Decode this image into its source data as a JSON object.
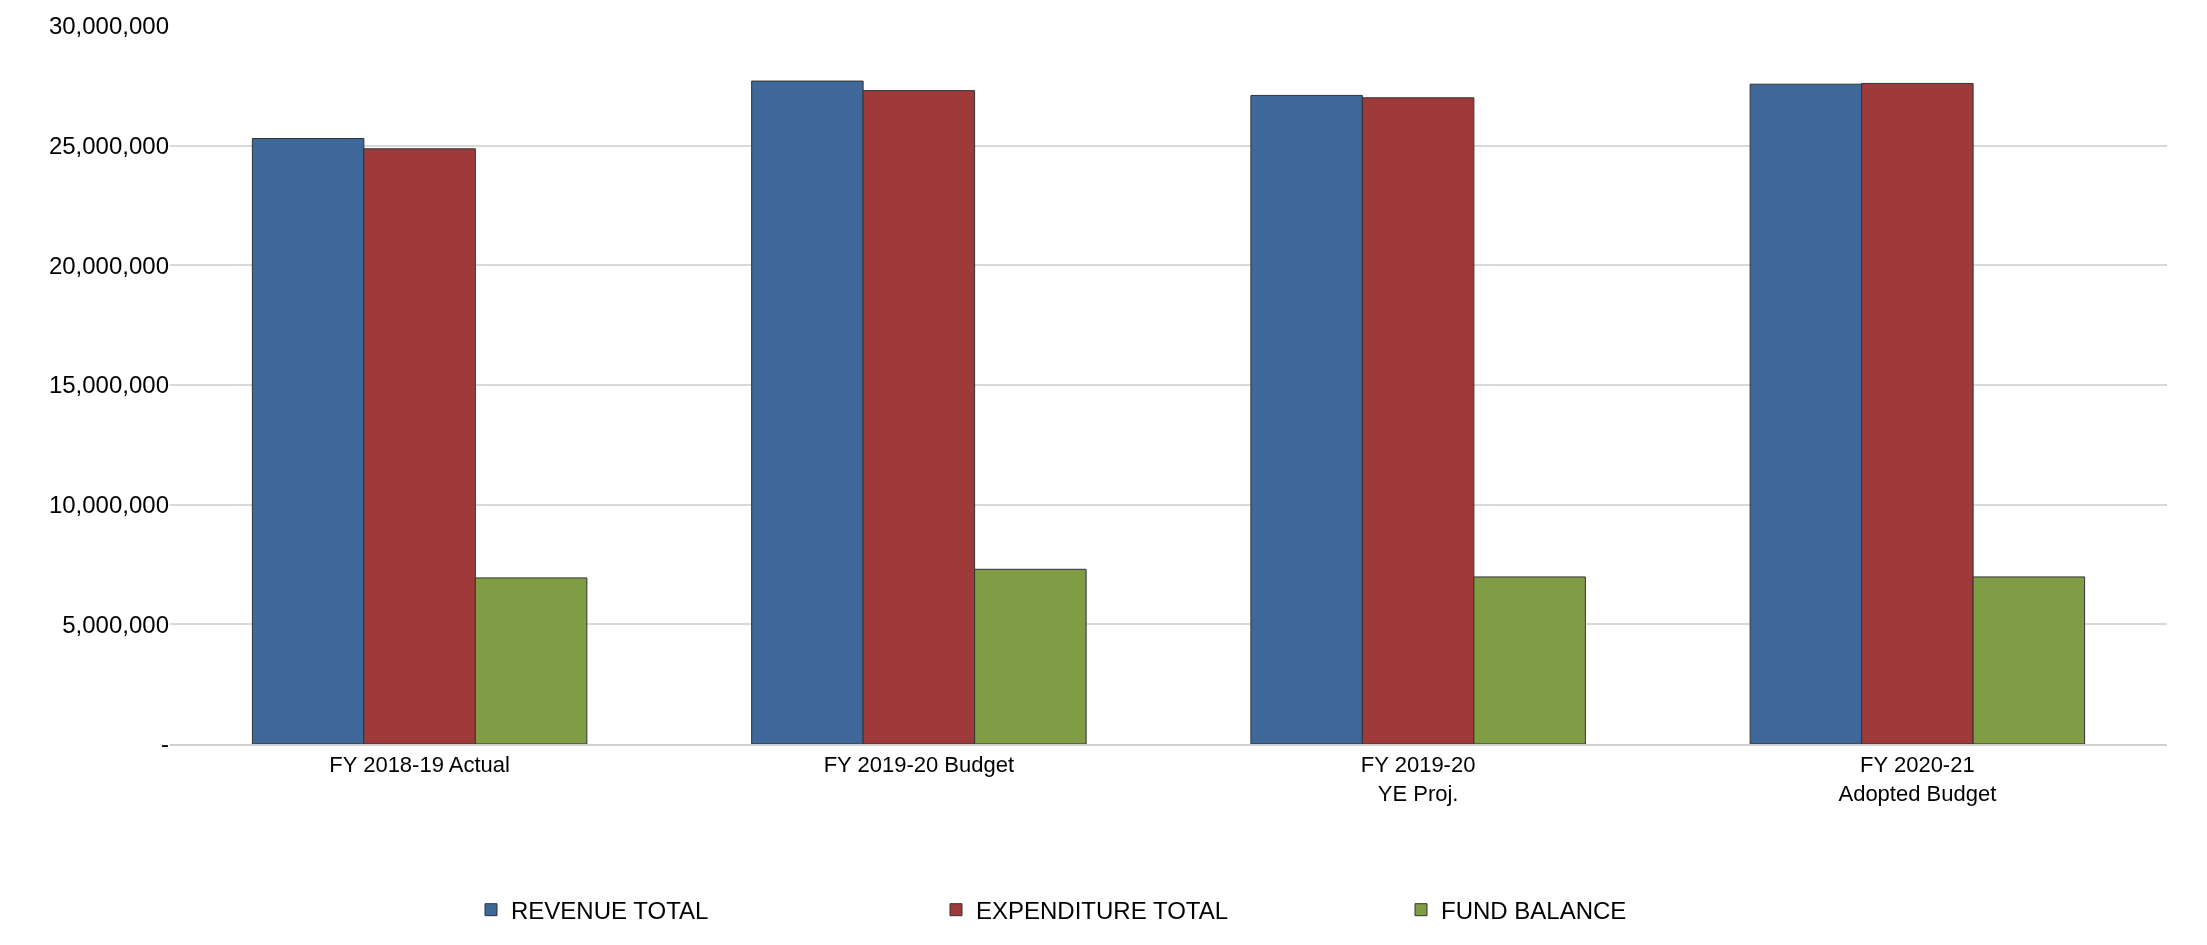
{
  "chart_data": {
    "type": "bar",
    "categories": [
      "FY 2018-19 Actual",
      "FY 2019-20 Budget",
      "FY 2019-20\nYE Proj.",
      "FY 2020-21\nAdopted Budget"
    ],
    "series": [
      {
        "name": "REVENUE TOTAL",
        "color": "#3d6899",
        "values": [
          25300000,
          27700000,
          27100000,
          27570000
        ]
      },
      {
        "name": "EXPENDITURE TOTAL",
        "color": "#9e3b3a",
        "values": [
          24870000,
          27300000,
          27000000,
          27600000
        ]
      },
      {
        "name": "FUND BALANCE",
        "color": "#809d45",
        "values": [
          6940000,
          7300000,
          6980000,
          6980000
        ]
      }
    ],
    "ylim": [
      0,
      30000000
    ],
    "yticks": [
      {
        "value": 0,
        "label": "-"
      },
      {
        "value": 5000000,
        "label": "5,000,000"
      },
      {
        "value": 10000000,
        "label": "10,000,000"
      },
      {
        "value": 15000000,
        "label": "15,000,000"
      },
      {
        "value": 20000000,
        "label": "20,000,000"
      },
      {
        "value": 25000000,
        "label": "25,000,000"
      },
      {
        "value": 30000000,
        "label": "30,000,000"
      }
    ],
    "grid": "y",
    "legend": "bottom"
  }
}
